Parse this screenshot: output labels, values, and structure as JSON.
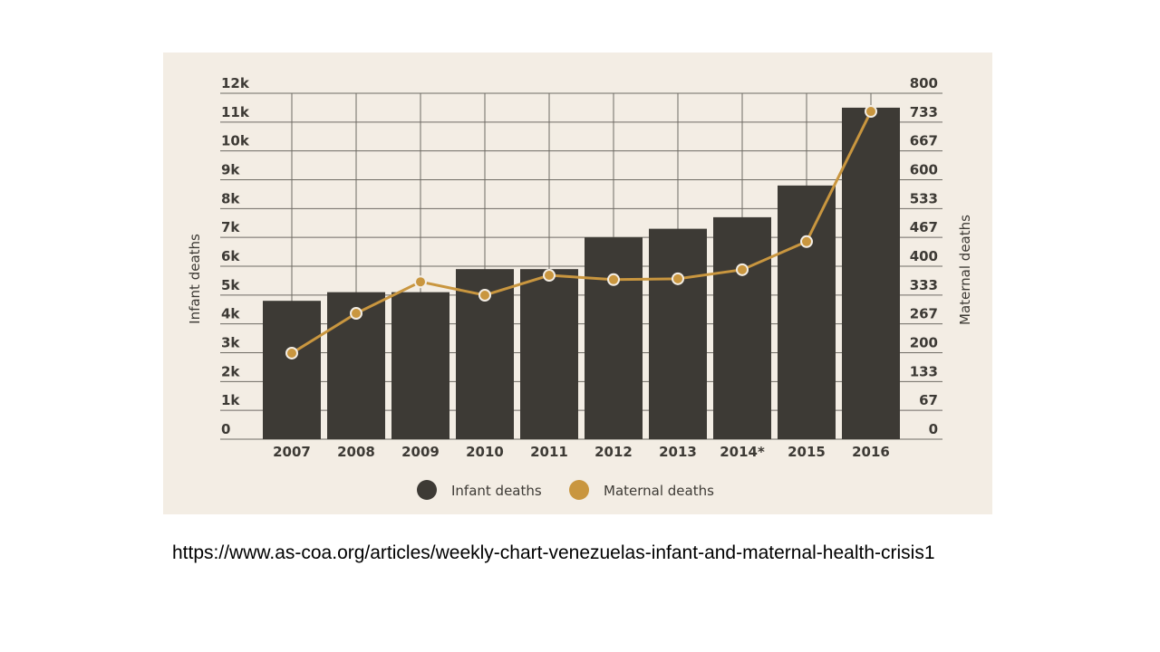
{
  "source_url": "https://www.as-coa.org/articles/weekly-chart-venezuelas-infant-and-maternal-health-crisis1",
  "chart_data": {
    "type": "bar+line",
    "title": "",
    "categories": [
      "2007",
      "2008",
      "2009",
      "2010",
      "2011",
      "2012",
      "2013",
      "2014*",
      "2015",
      "2016"
    ],
    "series": [
      {
        "name": "Infant deaths",
        "type": "bar",
        "axis": "left",
        "color": "#3d3a35",
        "values": [
          4800,
          5100,
          5100,
          5900,
          5900,
          7000,
          7300,
          7700,
          8800,
          11500
        ]
      },
      {
        "name": "Maternal deaths",
        "type": "line",
        "axis": "right",
        "color": "#c9963f",
        "values": [
          199,
          291,
          364,
          333,
          379,
          369,
          371,
          392,
          457,
          758
        ]
      }
    ],
    "ylabel": "Infant deaths",
    "y2label": "Maternal deaths",
    "ylim": [
      0,
      12000
    ],
    "y2lim": [
      0,
      800
    ],
    "yticks": [
      "0",
      "1k",
      "2k",
      "3k",
      "4k",
      "5k",
      "6k",
      "7k",
      "8k",
      "9k",
      "10k",
      "11k",
      "12k"
    ],
    "y2ticks": [
      "0",
      "67",
      "133",
      "200",
      "267",
      "333",
      "400",
      "467",
      "533",
      "600",
      "667",
      "733",
      "800"
    ],
    "grid": true,
    "legend": "bottom",
    "legend_entries": [
      "Infant deaths",
      "Maternal deaths"
    ]
  }
}
